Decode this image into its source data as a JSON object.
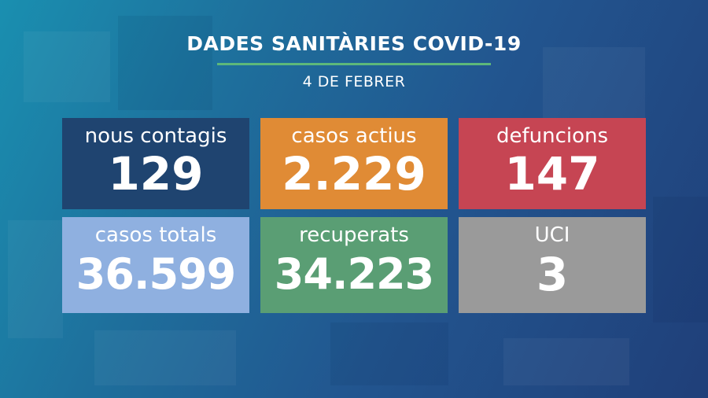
{
  "header": {
    "title": "DADES SANITÀRIES COVID-19",
    "date": "4 DE FEBRER",
    "divider_color": "#5db87a"
  },
  "tiles": [
    {
      "label": "nous contagis",
      "value": "129",
      "color": "#1f4470"
    },
    {
      "label": "casos actius",
      "value": "2.229",
      "color": "#e08b35"
    },
    {
      "label": "defuncions",
      "value": "147",
      "color": "#c64553"
    },
    {
      "label": "casos totals",
      "value": "36.599",
      "color": "#8fb0e0"
    },
    {
      "label": "recuperats",
      "value": "34.223",
      "color": "#5a9e74"
    },
    {
      "label": "UCI",
      "value": "3",
      "color": "#9a9a9a"
    }
  ]
}
